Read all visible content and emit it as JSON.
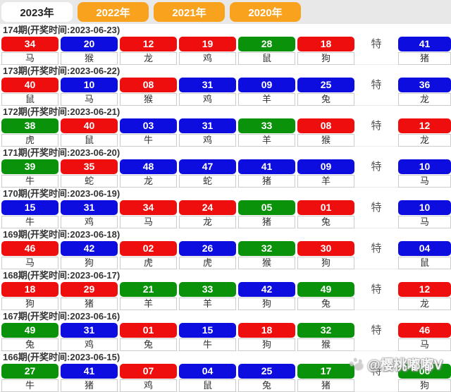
{
  "tabs": [
    {
      "label": "2023年",
      "active": true
    },
    {
      "label": "2022年",
      "active": false
    },
    {
      "label": "2021年",
      "active": false
    },
    {
      "label": "2020年",
      "active": false
    }
  ],
  "special_label": "特",
  "watermark": {
    "icon": "paw-icon",
    "text": "@樱桃嘟嘟V"
  },
  "colors": {
    "ball_red": "#ee0e0e",
    "ball_blue": "#0d0de0",
    "ball_green": "#0a930a",
    "tab_orange": "#f9a21d",
    "tabbar_bg": "#e8e8e8"
  },
  "draws": [
    {
      "header": "174期(开奖时间:2023-06-23)",
      "balls": [
        {
          "num": "34",
          "color": "red",
          "animal": "马"
        },
        {
          "num": "20",
          "color": "blue",
          "animal": "猴"
        },
        {
          "num": "12",
          "color": "red",
          "animal": "龙"
        },
        {
          "num": "19",
          "color": "red",
          "animal": "鸡"
        },
        {
          "num": "28",
          "color": "green",
          "animal": "鼠"
        },
        {
          "num": "18",
          "color": "red",
          "animal": "狗"
        }
      ],
      "special": {
        "num": "41",
        "color": "blue",
        "animal": "猪"
      }
    },
    {
      "header": "173期(开奖时间:2023-06-22)",
      "balls": [
        {
          "num": "40",
          "color": "red",
          "animal": "鼠"
        },
        {
          "num": "10",
          "color": "blue",
          "animal": "马"
        },
        {
          "num": "08",
          "color": "red",
          "animal": "猴"
        },
        {
          "num": "31",
          "color": "blue",
          "animal": "鸡"
        },
        {
          "num": "09",
          "color": "blue",
          "animal": "羊"
        },
        {
          "num": "25",
          "color": "blue",
          "animal": "兔"
        }
      ],
      "special": {
        "num": "36",
        "color": "blue",
        "animal": "龙"
      }
    },
    {
      "header": "172期(开奖时间:2023-06-21)",
      "balls": [
        {
          "num": "38",
          "color": "green",
          "animal": "虎"
        },
        {
          "num": "40",
          "color": "red",
          "animal": "鼠"
        },
        {
          "num": "03",
          "color": "blue",
          "animal": "牛"
        },
        {
          "num": "31",
          "color": "blue",
          "animal": "鸡"
        },
        {
          "num": "33",
          "color": "green",
          "animal": "羊"
        },
        {
          "num": "08",
          "color": "red",
          "animal": "猴"
        }
      ],
      "special": {
        "num": "12",
        "color": "red",
        "animal": "龙"
      }
    },
    {
      "header": "171期(开奖时间:2023-06-20)",
      "balls": [
        {
          "num": "39",
          "color": "green",
          "animal": "牛"
        },
        {
          "num": "35",
          "color": "red",
          "animal": "蛇"
        },
        {
          "num": "48",
          "color": "blue",
          "animal": "龙"
        },
        {
          "num": "47",
          "color": "blue",
          "animal": "蛇"
        },
        {
          "num": "41",
          "color": "blue",
          "animal": "猪"
        },
        {
          "num": "09",
          "color": "blue",
          "animal": "羊"
        }
      ],
      "special": {
        "num": "10",
        "color": "blue",
        "animal": "马"
      }
    },
    {
      "header": "170期(开奖时间:2023-06-19)",
      "balls": [
        {
          "num": "15",
          "color": "blue",
          "animal": "牛"
        },
        {
          "num": "31",
          "color": "blue",
          "animal": "鸡"
        },
        {
          "num": "34",
          "color": "red",
          "animal": "马"
        },
        {
          "num": "24",
          "color": "red",
          "animal": "龙"
        },
        {
          "num": "05",
          "color": "green",
          "animal": "猪"
        },
        {
          "num": "01",
          "color": "red",
          "animal": "兔"
        }
      ],
      "special": {
        "num": "10",
        "color": "blue",
        "animal": "马"
      }
    },
    {
      "header": "169期(开奖时间:2023-06-18)",
      "balls": [
        {
          "num": "46",
          "color": "red",
          "animal": "马"
        },
        {
          "num": "42",
          "color": "blue",
          "animal": "狗"
        },
        {
          "num": "02",
          "color": "red",
          "animal": "虎"
        },
        {
          "num": "26",
          "color": "blue",
          "animal": "虎"
        },
        {
          "num": "32",
          "color": "green",
          "animal": "猴"
        },
        {
          "num": "30",
          "color": "red",
          "animal": "狗"
        }
      ],
      "special": {
        "num": "04",
        "color": "blue",
        "animal": "鼠"
      }
    },
    {
      "header": "168期(开奖时间:2023-06-17)",
      "balls": [
        {
          "num": "18",
          "color": "red",
          "animal": "狗"
        },
        {
          "num": "29",
          "color": "red",
          "animal": "猪"
        },
        {
          "num": "21",
          "color": "green",
          "animal": "羊"
        },
        {
          "num": "33",
          "color": "green",
          "animal": "羊"
        },
        {
          "num": "42",
          "color": "blue",
          "animal": "狗"
        },
        {
          "num": "49",
          "color": "green",
          "animal": "兔"
        }
      ],
      "special": {
        "num": "12",
        "color": "red",
        "animal": "龙"
      }
    },
    {
      "header": "167期(开奖时间:2023-06-16)",
      "balls": [
        {
          "num": "49",
          "color": "green",
          "animal": "兔"
        },
        {
          "num": "31",
          "color": "blue",
          "animal": "鸡"
        },
        {
          "num": "01",
          "color": "red",
          "animal": "兔"
        },
        {
          "num": "15",
          "color": "blue",
          "animal": "牛"
        },
        {
          "num": "18",
          "color": "red",
          "animal": "狗"
        },
        {
          "num": "32",
          "color": "green",
          "animal": "猴"
        }
      ],
      "special": {
        "num": "46",
        "color": "red",
        "animal": "马"
      }
    },
    {
      "header": "166期(开奖时间:2023-06-15)",
      "balls": [
        {
          "num": "27",
          "color": "green",
          "animal": "牛"
        },
        {
          "num": "41",
          "color": "blue",
          "animal": "猪"
        },
        {
          "num": "07",
          "color": "red",
          "animal": "鸡"
        },
        {
          "num": "04",
          "color": "blue",
          "animal": "鼠"
        },
        {
          "num": "25",
          "color": "blue",
          "animal": "兔"
        },
        {
          "num": "17",
          "color": "green",
          "animal": "猪"
        }
      ],
      "special": {
        "num": "06",
        "color": "green",
        "animal": "狗"
      }
    }
  ]
}
